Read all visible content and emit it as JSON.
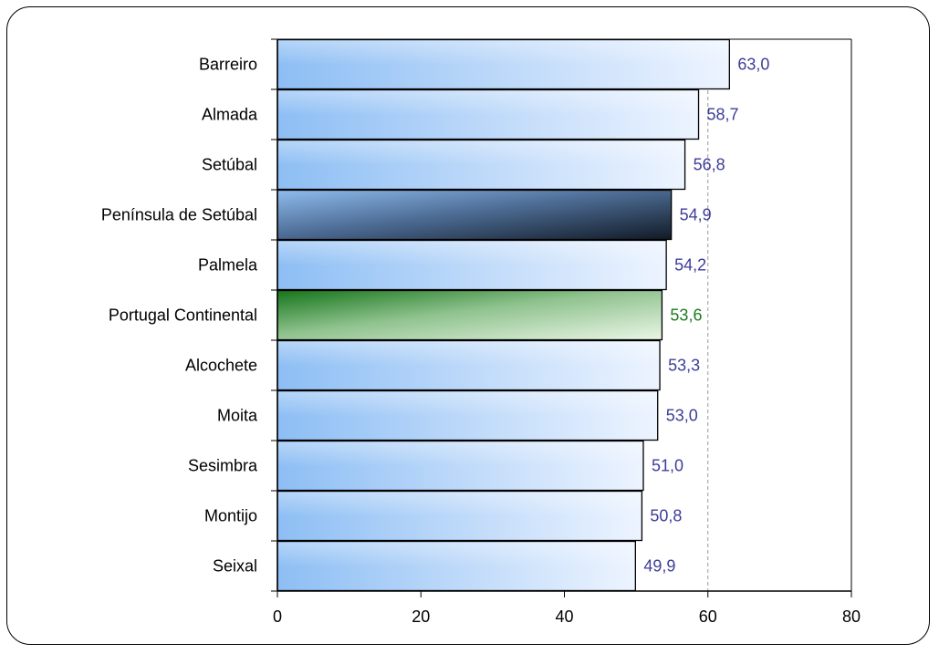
{
  "chart_data": {
    "type": "bar",
    "orientation": "horizontal",
    "title": "",
    "xlabel": "",
    "ylabel": "",
    "categories": [
      "Barreiro",
      "Almada",
      "Setúbal",
      "Península de Setúbal",
      "Palmela",
      "Portugal Continental",
      "Alcochete",
      "Moita",
      "Sesimbra",
      "Montijo",
      "Seixal"
    ],
    "values": [
      63.0,
      58.7,
      56.8,
      54.9,
      54.2,
      53.6,
      53.3,
      53.0,
      51.0,
      50.8,
      49.9
    ],
    "value_labels": [
      "63,0",
      "58,7",
      "56,8",
      "54,9",
      "54,2",
      "53,6",
      "53,3",
      "53,0",
      "51,0",
      "50,8",
      "49,9"
    ],
    "highlight": {
      "Península de Setúbal": "dark",
      "Portugal Continental": "green"
    },
    "xlim": [
      0,
      80
    ],
    "xticks": [
      0,
      20,
      40,
      60,
      80
    ],
    "reference_line": 60,
    "grid": false,
    "legend": "none",
    "colors": {
      "bar_light": "#e6f1ff",
      "bar_mid": "#9ec9f7",
      "bar_dark_start": "#7fb0ea",
      "bar_dark_end": "#17202e",
      "bar_green_start": "#1c7a1c",
      "bar_green_end": "#e9f5e4",
      "value_label": "#3d3d99",
      "value_label_green": "#1e7b1e",
      "reference_line": "#999999"
    }
  }
}
